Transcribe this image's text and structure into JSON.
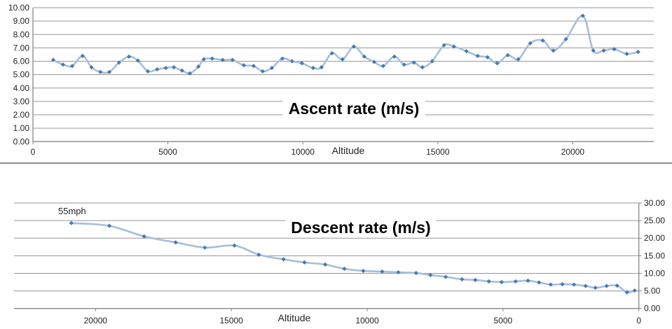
{
  "page": {
    "background": "#ffffff",
    "separator_color": "#8c8c8c"
  },
  "colors": {
    "line": "#a7c0dd",
    "marker": "#4879b0",
    "grid": "#969696",
    "axis": "#7f7f7f",
    "tick_text": "#1f1f1f",
    "title_text": "#000000"
  },
  "chart_data": [
    {
      "type": "line",
      "title": "Ascent rate (m/s)",
      "xlabel": "Altitude",
      "ylabel": "",
      "legend": "none",
      "grid": true,
      "smoothed": true,
      "x_reversed": false,
      "y_axis_side": "left",
      "xlim": [
        0,
        23000
      ],
      "ylim": [
        0,
        10
      ],
      "x_tick_labels": [
        "0",
        "5000",
        "10000",
        "15000",
        "20000"
      ],
      "y_tick_labels": [
        "0.00",
        "1.00",
        "2.00",
        "3.00",
        "4.00",
        "5.00",
        "6.00",
        "7.00",
        "8.00",
        "9.00",
        "10.00"
      ],
      "points": [
        [
          750,
          6.1
        ],
        [
          1115,
          5.75
        ],
        [
          1455,
          5.65
        ],
        [
          1840,
          6.4
        ],
        [
          2170,
          5.55
        ],
        [
          2500,
          5.2
        ],
        [
          2830,
          5.2
        ],
        [
          3190,
          5.9
        ],
        [
          3560,
          6.35
        ],
        [
          3890,
          6.05
        ],
        [
          4255,
          5.25
        ],
        [
          4600,
          5.4
        ],
        [
          4925,
          5.5
        ],
        [
          5220,
          5.55
        ],
        [
          5525,
          5.3
        ],
        [
          5815,
          5.1
        ],
        [
          6130,
          5.6
        ],
        [
          6330,
          6.15
        ],
        [
          6640,
          6.2
        ],
        [
          7030,
          6.1
        ],
        [
          7395,
          6.1
        ],
        [
          7810,
          5.7
        ],
        [
          8175,
          5.65
        ],
        [
          8510,
          5.25
        ],
        [
          8850,
          5.5
        ],
        [
          9240,
          6.2
        ],
        [
          9600,
          6.0
        ],
        [
          9965,
          5.85
        ],
        [
          10380,
          5.5
        ],
        [
          10690,
          5.55
        ],
        [
          11080,
          6.6
        ],
        [
          11470,
          6.15
        ],
        [
          11885,
          7.1
        ],
        [
          12275,
          6.35
        ],
        [
          12640,
          5.95
        ],
        [
          12975,
          5.65
        ],
        [
          13390,
          6.35
        ],
        [
          13750,
          5.75
        ],
        [
          14115,
          5.9
        ],
        [
          14430,
          5.55
        ],
        [
          14790,
          6.0
        ],
        [
          15230,
          7.2
        ],
        [
          15595,
          7.1
        ],
        [
          16060,
          6.75
        ],
        [
          16475,
          6.4
        ],
        [
          16840,
          6.3
        ],
        [
          17200,
          5.85
        ],
        [
          17590,
          6.45
        ],
        [
          17980,
          6.15
        ],
        [
          18425,
          7.35
        ],
        [
          18890,
          7.55
        ],
        [
          19280,
          6.8
        ],
        [
          19745,
          7.65
        ],
        [
          20370,
          9.4
        ],
        [
          20760,
          6.8
        ],
        [
          21145,
          6.8
        ],
        [
          21535,
          6.9
        ],
        [
          22000,
          6.55
        ],
        [
          22420,
          6.7
        ]
      ]
    },
    {
      "type": "line",
      "title": "Descent rate (m/s)",
      "xlabel": "Altitude",
      "ylabel": "",
      "legend": "none",
      "grid": true,
      "smoothed": true,
      "x_reversed": true,
      "y_axis_side": "right",
      "xlim": [
        0,
        23000
      ],
      "ylim": [
        0,
        30
      ],
      "annotation": "55mph",
      "x_tick_labels": [
        "20000",
        "15000",
        "10000",
        "5000",
        "0"
      ],
      "y_tick_labels": [
        "30.00",
        "25.00",
        "20.00",
        "15.00",
        "10.00",
        "5.00",
        "0.00"
      ],
      "points": [
        [
          20890,
          24.3
        ],
        [
          19490,
          23.5
        ],
        [
          18210,
          20.5
        ],
        [
          17050,
          18.8
        ],
        [
          15975,
          17.3
        ],
        [
          14885,
          17.9
        ],
        [
          13990,
          15.3
        ],
        [
          13080,
          14.0
        ],
        [
          12310,
          13.1
        ],
        [
          11545,
          12.5
        ],
        [
          10840,
          11.3
        ],
        [
          10145,
          10.7
        ],
        [
          9450,
          10.5
        ],
        [
          8855,
          10.3
        ],
        [
          8200,
          10.1
        ],
        [
          7670,
          9.5
        ],
        [
          7110,
          9.0
        ],
        [
          6510,
          8.3
        ],
        [
          6020,
          8.1
        ],
        [
          5520,
          7.7
        ],
        [
          5050,
          7.5
        ],
        [
          4535,
          7.7
        ],
        [
          4080,
          7.9
        ],
        [
          3675,
          7.4
        ],
        [
          3245,
          6.8
        ],
        [
          2815,
          6.9
        ],
        [
          2390,
          6.8
        ],
        [
          1960,
          6.4
        ],
        [
          1600,
          5.9
        ],
        [
          1185,
          6.4
        ],
        [
          800,
          6.5
        ],
        [
          440,
          4.6
        ],
        [
          155,
          5.1
        ]
      ]
    }
  ]
}
